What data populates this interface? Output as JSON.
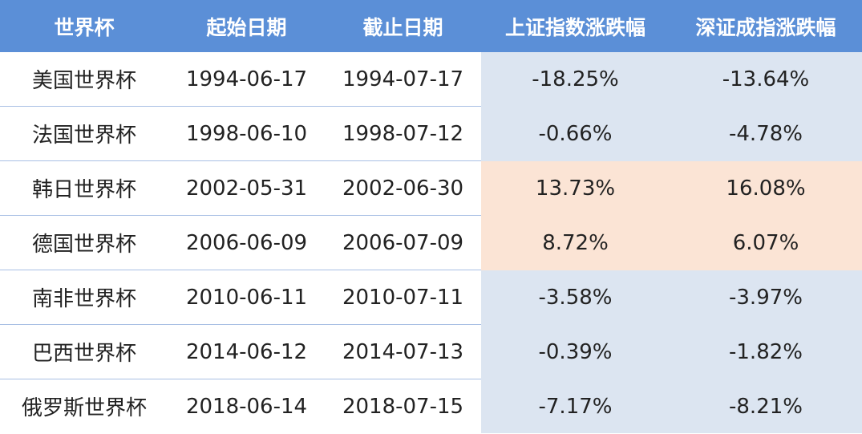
{
  "table": {
    "header": [
      "世界杯",
      "起始日期",
      "截止日期",
      "上证指数涨跌幅",
      "深证成指涨跌幅"
    ],
    "rows": [
      [
        "美国世界杯",
        "1994-06-17",
        "1994-07-17",
        "-18.25%",
        "-13.64%"
      ],
      [
        "法国世界杯",
        "1998-06-10",
        "1998-07-12",
        "-0.66%",
        "-4.78%"
      ],
      [
        "韩日世界杯",
        "2002-05-31",
        "2002-06-30",
        "13.73%",
        "16.08%"
      ],
      [
        "德国世界杯",
        "2006-06-09",
        "2006-07-09",
        "8.72%",
        "6.07%"
      ],
      [
        "南非世界杯",
        "2010-06-11",
        "2010-07-11",
        "-3.58%",
        "-3.97%"
      ],
      [
        "巴西世界杯",
        "2014-06-12",
        "2014-07-13",
        "-0.39%",
        "-1.82%"
      ],
      [
        "俄罗斯世界杯",
        "2018-06-14",
        "2018-07-15",
        "-7.17%",
        "-8.21%"
      ]
    ]
  }
}
